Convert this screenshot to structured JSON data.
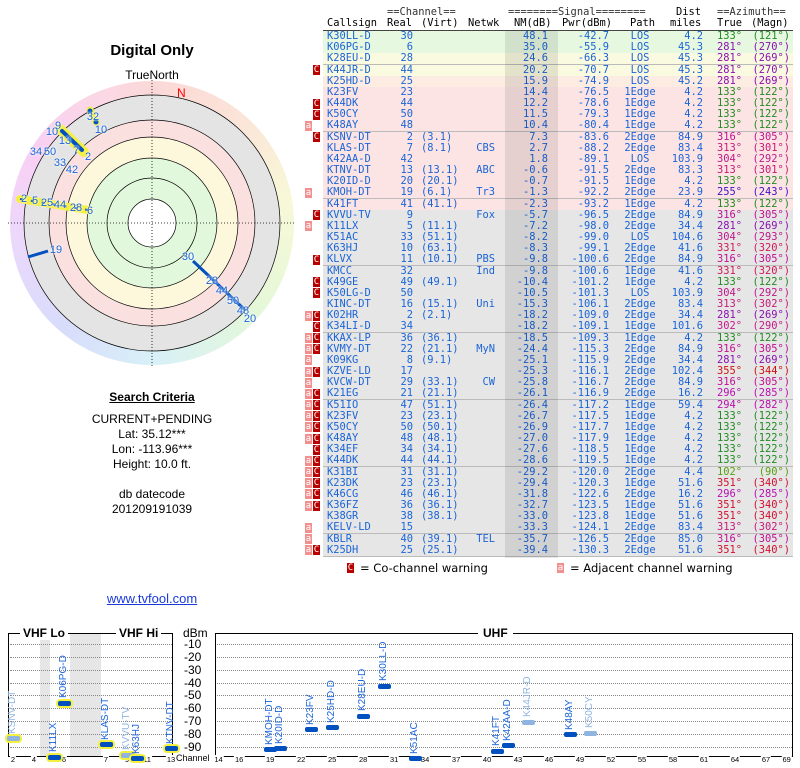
{
  "left": {
    "title": "Digital Only",
    "true_north": "TrueNorth",
    "north": "N",
    "search_title": "Search Criteria",
    "criteria": "CURRENT+PENDING",
    "lat": "Lat: 35.12***",
    "lon": "Lon: -113.96***",
    "height": "Height: 10.0 ft.",
    "db_label": "db datecode",
    "db_value": "201209191039",
    "link": "www.tvfool.com"
  },
  "polar_labels": [
    "32",
    "10",
    "9",
    "10",
    "13",
    "7",
    "2",
    "34",
    "50",
    "33",
    "42",
    "2",
    "5",
    "25",
    "44",
    "28",
    "6",
    "19",
    "30",
    "23",
    "44",
    "50",
    "48",
    "20"
  ],
  "table": {
    "group_headers": {
      "channel": "==Channel==",
      "signal": "========Signal========",
      "dist": "Dist",
      "azimuth": "==Azimuth=="
    },
    "headers": {
      "callsign": "Callsign",
      "real": "Real",
      "virt": "(Virt)",
      "netwk": "Netwk",
      "nm": "NM(dB)",
      "pwr": "Pwr(dBm)",
      "path": "Path",
      "dist": "miles",
      "true": "True",
      "magn": "(Magn)"
    },
    "flag_labels": {
      "c": "C",
      "a": "a"
    },
    "rows": [
      {
        "f": "",
        "cs": "K30LL-D",
        "real": "30",
        "virt": "",
        "net": "",
        "nm": "48.1",
        "pwr": "-42.7",
        "path": "LOS",
        "dist": "4.2",
        "tr": "133°",
        "mg": "(121°)",
        "col": "#228b22",
        "bg": "#e6f8e0"
      },
      {
        "f": "",
        "cs": "K06PG-D",
        "real": "6",
        "virt": "",
        "net": "",
        "nm": "35.0",
        "pwr": "-55.9",
        "path": "LOS",
        "dist": "45.3",
        "tr": "281°",
        "mg": "(270°)",
        "col": "#8b10b0",
        "bg": "#e6f8e0"
      },
      {
        "f": "",
        "cs": "K28EU-D",
        "real": "28",
        "virt": "",
        "net": "",
        "nm": "24.6",
        "pwr": "-66.3",
        "path": "LOS",
        "dist": "45.3",
        "tr": "281°",
        "mg": "(269°)",
        "col": "#8b10b0",
        "bg": "#fafae0"
      },
      {
        "f": "c",
        "cs": "K44JR-D",
        "real": "44",
        "virt": "",
        "net": "",
        "nm": "20.2",
        "pwr": "-70.7",
        "path": "LOS",
        "dist": "45.3",
        "tr": "281°",
        "mg": "(270°)",
        "col": "#8b10b0",
        "bg": "#fafae0"
      },
      {
        "f": "",
        "cs": "K25HD-D",
        "real": "25",
        "virt": "",
        "net": "",
        "nm": "15.9",
        "pwr": "-74.9",
        "path": "LOS",
        "dist": "45.2",
        "tr": "281°",
        "mg": "(269°)",
        "col": "#8b10b0",
        "bg": "#fcece2"
      },
      {
        "f": "",
        "cs": "K23FV",
        "real": "23",
        "virt": "",
        "net": "",
        "nm": "14.4",
        "pwr": "-76.5",
        "path": "1Edge",
        "dist": "4.2",
        "tr": "133°",
        "mg": "(122°)",
        "col": "#228b22",
        "bg": "#fce4e4"
      },
      {
        "f": "c",
        "cs": "K44DK",
        "real": "44",
        "virt": "",
        "net": "",
        "nm": "12.2",
        "pwr": "-78.6",
        "path": "1Edge",
        "dist": "4.2",
        "tr": "133°",
        "mg": "(122°)",
        "col": "#228b22",
        "bg": "#fce4e4"
      },
      {
        "f": "c",
        "cs": "K50CY",
        "real": "50",
        "virt": "",
        "net": "",
        "nm": "11.5",
        "pwr": "-79.3",
        "path": "1Edge",
        "dist": "4.2",
        "tr": "133°",
        "mg": "(122°)",
        "col": "#228b22",
        "bg": "#fce4e4"
      },
      {
        "f": "a",
        "cs": "K48AY",
        "real": "48",
        "virt": "",
        "net": "",
        "nm": "10.4",
        "pwr": "-80.4",
        "path": "1Edge",
        "dist": "4.2",
        "tr": "133°",
        "mg": "(122°)",
        "col": "#228b22",
        "bg": "#fce4e4"
      },
      {
        "f": "c",
        "cs": "KSNV-DT",
        "real": "2",
        "virt": "(3.1)",
        "net": "",
        "nm": "7.3",
        "pwr": "-83.6",
        "path": "2Edge",
        "dist": "84.9",
        "tr": "316°",
        "mg": "(305°)",
        "col": "#c0108f",
        "bg": "#fce4e4"
      },
      {
        "f": "",
        "cs": "KLAS-DT",
        "real": "7",
        "virt": "(8.1)",
        "net": "CBS",
        "nm": "2.7",
        "pwr": "-88.2",
        "path": "2Edge",
        "dist": "83.4",
        "tr": "313°",
        "mg": "(301°)",
        "col": "#c81878",
        "bg": "#fce4e4"
      },
      {
        "f": "",
        "cs": "K42AA-D",
        "real": "42",
        "virt": "",
        "net": "",
        "nm": "1.8",
        "pwr": "-89.1",
        "path": "LOS",
        "dist": "103.9",
        "tr": "304°",
        "mg": "(292°)",
        "col": "#c01888",
        "bg": "#fce4e4"
      },
      {
        "f": "",
        "cs": "KTNV-DT",
        "real": "13",
        "virt": "(13.1)",
        "net": "ABC",
        "nm": "-0.6",
        "pwr": "-91.5",
        "path": "2Edge",
        "dist": "83.3",
        "tr": "313°",
        "mg": "(301°)",
        "col": "#c81878",
        "bg": "#fce4e4"
      },
      {
        "f": "",
        "cs": "K20ID-D",
        "real": "20",
        "virt": "(20.1)",
        "net": "",
        "nm": "-0.7",
        "pwr": "-91.5",
        "path": "1Edge",
        "dist": "4.2",
        "tr": "133°",
        "mg": "(122°)",
        "col": "#228b22",
        "bg": "#fce4e4"
      },
      {
        "f": "a",
        "cs": "KMOH-DT",
        "real": "19",
        "virt": "(6.1)",
        "net": "Tr3",
        "nm": "-1.3",
        "pwr": "-92.2",
        "path": "2Edge",
        "dist": "23.9",
        "tr": "255°",
        "mg": "(243°)",
        "col": "#4010c0",
        "bg": "#fce4e4"
      },
      {
        "f": "",
        "cs": "K41FT",
        "real": "41",
        "virt": "(41.1)",
        "net": "",
        "nm": "-2.3",
        "pwr": "-93.2",
        "path": "1Edge",
        "dist": "4.2",
        "tr": "133°",
        "mg": "(122°)",
        "col": "#228b22",
        "bg": "#fce4e4"
      },
      {
        "f": "c",
        "cs": "KVVU-TV",
        "real": "9",
        "virt": "",
        "net": "Fox",
        "nm": "-5.7",
        "pwr": "-96.5",
        "path": "2Edge",
        "dist": "84.9",
        "tr": "316°",
        "mg": "(305°)",
        "col": "#c0108f",
        "bg": "#e6e6e6"
      },
      {
        "f": "a",
        "cs": "K11LX",
        "real": "5",
        "virt": "(11.1)",
        "net": "",
        "nm": "-7.2",
        "pwr": "-98.0",
        "path": "2Edge",
        "dist": "34.4",
        "tr": "281°",
        "mg": "(269°)",
        "col": "#8b10b0",
        "bg": "#e6e6e6"
      },
      {
        "f": "",
        "cs": "K51AC",
        "real": "33",
        "virt": "(51.1)",
        "net": "",
        "nm": "-8.2",
        "pwr": "-99.0",
        "path": "LOS",
        "dist": "104.6",
        "tr": "304°",
        "mg": "(293°)",
        "col": "#c01888",
        "bg": "#e6e6e6"
      },
      {
        "f": "",
        "cs": "K63HJ",
        "real": "10",
        "virt": "(63.1)",
        "net": "",
        "nm": "-8.3",
        "pwr": "-99.1",
        "path": "2Edge",
        "dist": "41.6",
        "tr": "331°",
        "mg": "(320°)",
        "col": "#d01858",
        "bg": "#e6e6e6"
      },
      {
        "f": "c",
        "cs": "KLVX",
        "real": "11",
        "virt": "(10.1)",
        "net": "PBS",
        "nm": "-9.8",
        "pwr": "-100.6",
        "path": "2Edge",
        "dist": "84.9",
        "tr": "316°",
        "mg": "(305°)",
        "col": "#c0108f",
        "bg": "#e6e6e6"
      },
      {
        "f": "",
        "cs": "KMCC",
        "real": "32",
        "virt": "",
        "net": "Ind",
        "nm": "-9.8",
        "pwr": "-100.6",
        "path": "1Edge",
        "dist": "41.6",
        "tr": "331°",
        "mg": "(320°)",
        "col": "#d01858",
        "bg": "#e6e6e6"
      },
      {
        "f": "c",
        "cs": "K49GE",
        "real": "49",
        "virt": "(49.1)",
        "net": "",
        "nm": "-10.4",
        "pwr": "-101.2",
        "path": "1Edge",
        "dist": "4.2",
        "tr": "133°",
        "mg": "(122°)",
        "col": "#228b22",
        "bg": "#e6e6e6"
      },
      {
        "f": "c",
        "cs": "K50LG-D",
        "real": "50",
        "virt": "",
        "net": "",
        "nm": "-10.5",
        "pwr": "-101.3",
        "path": "LOS",
        "dist": "103.9",
        "tr": "304°",
        "mg": "(292°)",
        "col": "#c01888",
        "bg": "#e6e6e6"
      },
      {
        "f": "",
        "cs": "KINC-DT",
        "real": "16",
        "virt": "(15.1)",
        "net": "Uni",
        "nm": "-15.3",
        "pwr": "-106.1",
        "path": "2Edge",
        "dist": "83.4",
        "tr": "313°",
        "mg": "(302°)",
        "col": "#c81878",
        "bg": "#e6e6e6"
      },
      {
        "f": "ac",
        "cs": "K02HR",
        "real": "2",
        "virt": "(2.1)",
        "net": "",
        "nm": "-18.2",
        "pwr": "-109.0",
        "path": "2Edge",
        "dist": "34.4",
        "tr": "281°",
        "mg": "(269°)",
        "col": "#8b10b0",
        "bg": "#e6e6e6"
      },
      {
        "f": "c",
        "cs": "K34LI-D",
        "real": "34",
        "virt": "",
        "net": "",
        "nm": "-18.2",
        "pwr": "-109.1",
        "path": "1Edge",
        "dist": "101.6",
        "tr": "302°",
        "mg": "(290°)",
        "col": "#c81888",
        "bg": "#e6e6e6"
      },
      {
        "f": "ac",
        "cs": "KKAX-LP",
        "real": "36",
        "virt": "(36.1)",
        "net": "",
        "nm": "-18.5",
        "pwr": "-109.3",
        "path": "1Edge",
        "dist": "4.2",
        "tr": "133°",
        "mg": "(122°)",
        "col": "#228b22",
        "bg": "#e6e6e6"
      },
      {
        "f": "ac",
        "cs": "KVMY-DT",
        "real": "22",
        "virt": "(21.1)",
        "net": "MyN",
        "nm": "-24.4",
        "pwr": "-115.3",
        "path": "2Edge",
        "dist": "84.9",
        "tr": "316°",
        "mg": "(305°)",
        "col": "#c0108f",
        "bg": "#e6e6e6"
      },
      {
        "f": "a",
        "cs": "K09KG",
        "real": "8",
        "virt": "(9.1)",
        "net": "",
        "nm": "-25.1",
        "pwr": "-115.9",
        "path": "2Edge",
        "dist": "34.4",
        "tr": "281°",
        "mg": "(269°)",
        "col": "#8b10b0",
        "bg": "#e6e6e6"
      },
      {
        "f": "ac",
        "cs": "KZVE-LD",
        "real": "17",
        "virt": "",
        "net": "",
        "nm": "-25.3",
        "pwr": "-116.1",
        "path": "2Edge",
        "dist": "102.4",
        "tr": "355°",
        "mg": "(344°)",
        "col": "#d01010",
        "bg": "#e6e6e6"
      },
      {
        "f": "a",
        "cs": "KVCW-DT",
        "real": "29",
        "virt": "(33.1)",
        "net": "CW",
        "nm": "-25.8",
        "pwr": "-116.7",
        "path": "2Edge",
        "dist": "84.9",
        "tr": "316°",
        "mg": "(305°)",
        "col": "#c0108f",
        "bg": "#e6e6e6"
      },
      {
        "f": "ac",
        "cs": "K21EG",
        "real": "21",
        "virt": "(21.1)",
        "net": "",
        "nm": "-26.1",
        "pwr": "-116.9",
        "path": "2Edge",
        "dist": "16.2",
        "tr": "296°",
        "mg": "(285°)",
        "col": "#b810b0",
        "bg": "#e6e6e6"
      },
      {
        "f": "ac",
        "cs": "K51IO",
        "real": "47",
        "virt": "(51.1)",
        "net": "",
        "nm": "-26.4",
        "pwr": "-117.2",
        "path": "1Edge",
        "dist": "59.4",
        "tr": "294°",
        "mg": "(282°)",
        "col": "#b810a8",
        "bg": "#e6e6e6"
      },
      {
        "f": "ac",
        "cs": "K23FV",
        "real": "23",
        "virt": "(23.1)",
        "net": "",
        "nm": "-26.7",
        "pwr": "-117.5",
        "path": "1Edge",
        "dist": "4.2",
        "tr": "133°",
        "mg": "(122°)",
        "col": "#228b22",
        "bg": "#e6e6e6"
      },
      {
        "f": "ac",
        "cs": "K50CY",
        "real": "50",
        "virt": "(50.1)",
        "net": "",
        "nm": "-26.9",
        "pwr": "-117.7",
        "path": "1Edge",
        "dist": "4.2",
        "tr": "133°",
        "mg": "(122°)",
        "col": "#228b22",
        "bg": "#e6e6e6"
      },
      {
        "f": "ac",
        "cs": "K48AY",
        "real": "48",
        "virt": "(48.1)",
        "net": "",
        "nm": "-27.0",
        "pwr": "-117.9",
        "path": "1Edge",
        "dist": "4.2",
        "tr": "133°",
        "mg": "(122°)",
        "col": "#228b22",
        "bg": "#e6e6e6"
      },
      {
        "f": "c",
        "cs": "K34EF",
        "real": "34",
        "virt": "(34.1)",
        "net": "",
        "nm": "-27.6",
        "pwr": "-118.5",
        "path": "1Edge",
        "dist": "4.2",
        "tr": "133°",
        "mg": "(122°)",
        "col": "#228b22",
        "bg": "#e6e6e6"
      },
      {
        "f": "ac",
        "cs": "K44DK",
        "real": "44",
        "virt": "(44.1)",
        "net": "",
        "nm": "-28.6",
        "pwr": "-119.5",
        "path": "1Edge",
        "dist": "4.2",
        "tr": "133°",
        "mg": "(122°)",
        "col": "#228b22",
        "bg": "#e6e6e6"
      },
      {
        "f": "ac",
        "cs": "K31BI",
        "real": "31",
        "virt": "(31.1)",
        "net": "",
        "nm": "-29.2",
        "pwr": "-120.0",
        "path": "2Edge",
        "dist": "4.4",
        "tr": "102°",
        "mg": "(90°)",
        "col": "#58a010",
        "bg": "#e6e6e6"
      },
      {
        "f": "ac",
        "cs": "K23DK",
        "real": "23",
        "virt": "(23.1)",
        "net": "",
        "nm": "-29.4",
        "pwr": "-120.3",
        "path": "1Edge",
        "dist": "51.6",
        "tr": "351°",
        "mg": "(340°)",
        "col": "#d01030",
        "bg": "#e6e6e6"
      },
      {
        "f": "ac",
        "cs": "K46CG",
        "real": "46",
        "virt": "(46.1)",
        "net": "",
        "nm": "-31.8",
        "pwr": "-122.6",
        "path": "2Edge",
        "dist": "16.2",
        "tr": "296°",
        "mg": "(285°)",
        "col": "#b810b0",
        "bg": "#e6e6e6"
      },
      {
        "f": "ac",
        "cs": "K36FZ",
        "real": "36",
        "virt": "(36.1)",
        "net": "",
        "nm": "-32.7",
        "pwr": "-123.5",
        "path": "1Edge",
        "dist": "51.6",
        "tr": "351°",
        "mg": "(340°)",
        "col": "#d01030",
        "bg": "#e6e6e6"
      },
      {
        "f": "",
        "cs": "K38GR",
        "real": "38",
        "virt": "(38.1)",
        "net": "",
        "nm": "-33.0",
        "pwr": "-123.8",
        "path": "1Edge",
        "dist": "51.6",
        "tr": "351°",
        "mg": "(340°)",
        "col": "#d01030",
        "bg": "#e6e6e6"
      },
      {
        "f": "a",
        "cs": "KELV-LD",
        "real": "15",
        "virt": "",
        "net": "",
        "nm": "-33.3",
        "pwr": "-124.1",
        "path": "2Edge",
        "dist": "83.4",
        "tr": "313°",
        "mg": "(302°)",
        "col": "#c81878",
        "bg": "#e6e6e6"
      },
      {
        "f": "a",
        "cs": "KBLR",
        "real": "40",
        "virt": "(39.1)",
        "net": "TEL",
        "nm": "-35.7",
        "pwr": "-126.5",
        "path": "2Edge",
        "dist": "85.0",
        "tr": "316°",
        "mg": "(305°)",
        "col": "#c0108f",
        "bg": "#e6e6e6"
      },
      {
        "f": "ac",
        "cs": "K25DH",
        "real": "25",
        "virt": "(25.1)",
        "net": "",
        "nm": "-39.4",
        "pwr": "-130.3",
        "path": "2Edge",
        "dist": "51.6",
        "tr": "351°",
        "mg": "(340°)",
        "col": "#d01030",
        "bg": "#e6e6e6"
      }
    ],
    "legend": {
      "co": "= Co-channel warning",
      "adj": "= Adjacent channel warning"
    }
  },
  "spectrum": {
    "vhf_lo": "VHF Lo",
    "vhf_hi": "VHF Hi",
    "uhf": "UHF",
    "unit": "dBm",
    "channel_label": "Channel",
    "y_ticks": [
      "-10",
      "-20",
      "-30",
      "-40",
      "-50",
      "-60",
      "-70",
      "-80",
      "-90"
    ],
    "vhf_ticks": [
      "2",
      "4",
      "6",
      "7",
      "9",
      "11",
      "13"
    ],
    "uhf_ticks": [
      "14",
      "16",
      "19",
      "22",
      "25",
      "28",
      "31",
      "34",
      "37",
      "40",
      "43",
      "46",
      "49",
      "52",
      "55",
      "58",
      "61",
      "64",
      "67",
      "69"
    ],
    "markers": [
      {
        "label": "KSNV-DT",
        "ch": 2,
        "pwr": -83.6,
        "faded": true
      },
      {
        "label": "K11LX",
        "ch": 5,
        "pwr": -98.0,
        "faded": false
      },
      {
        "label": "K06PG-D",
        "ch": 6,
        "pwr": -55.9,
        "faded": false
      },
      {
        "label": "KLAS-DT",
        "ch": 7,
        "pwr": -88.2,
        "faded": false
      },
      {
        "label": "KVVU-TV",
        "ch": 9,
        "pwr": -96.5,
        "faded": true
      },
      {
        "label": "K63HJ",
        "ch": 10,
        "pwr": -99.1,
        "faded": false
      },
      {
        "label": "KTNV-DT",
        "ch": 13,
        "pwr": -91.5,
        "faded": false
      },
      {
        "label": "KMOH-DT",
        "ch": 19,
        "pwr": -92.2,
        "faded": false
      },
      {
        "label": "K20ID-D",
        "ch": 20,
        "pwr": -91.5,
        "faded": false
      },
      {
        "label": "K23FV",
        "ch": 23,
        "pwr": -76.5,
        "faded": false
      },
      {
        "label": "K25HD-D",
        "ch": 25,
        "pwr": -74.9,
        "faded": false
      },
      {
        "label": "K28EU-D",
        "ch": 28,
        "pwr": -66.3,
        "faded": false
      },
      {
        "label": "K30LL-D",
        "ch": 30,
        "pwr": -42.7,
        "faded": false
      },
      {
        "label": "K51AC",
        "ch": 33,
        "pwr": -99.0,
        "faded": false
      },
      {
        "label": "K41FT",
        "ch": 41,
        "pwr": -93.2,
        "faded": false
      },
      {
        "label": "K42AA-D",
        "ch": 42,
        "pwr": -89.1,
        "faded": false
      },
      {
        "label": "K44JR-D",
        "ch": 44,
        "pwr": -70.7,
        "faded": true
      },
      {
        "label": "K48AY",
        "ch": 48,
        "pwr": -80.4,
        "faded": false
      },
      {
        "label": "K50CY",
        "ch": 50,
        "pwr": -79.3,
        "faded": true
      }
    ]
  }
}
